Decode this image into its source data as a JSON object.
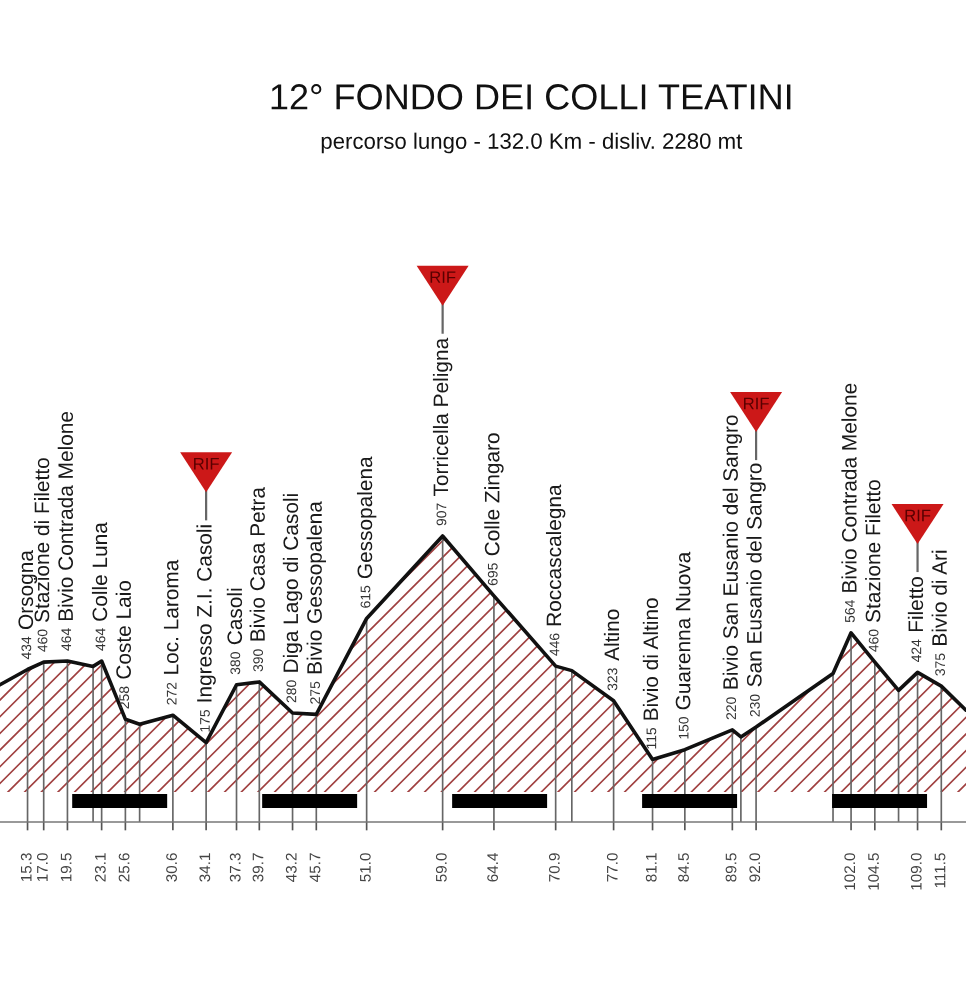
{
  "chart_data": {
    "type": "area",
    "title": "12° FONDO DEI COLLI TEATINI",
    "subtitle": "percorso lungo - 132.0 Km - disliv. 2280 mt",
    "x": [
      12.4,
      15.3,
      17.0,
      19.5,
      22.2,
      23.1,
      25.6,
      27.1,
      30.6,
      34.1,
      37.3,
      39.7,
      43.2,
      45.7,
      51.0,
      59.0,
      64.4,
      70.9,
      72.6,
      77.0,
      81.1,
      84.5,
      89.5,
      90.4,
      92.0,
      100.1,
      102.0,
      104.5,
      107.0,
      109.0,
      111.5,
      114.1
    ],
    "values": [
      380,
      434,
      460,
      464,
      445,
      464,
      258,
      240,
      272,
      175,
      380,
      390,
      280,
      275,
      615,
      907,
      695,
      446,
      430,
      323,
      115,
      150,
      220,
      195,
      230,
      420,
      564,
      460,
      360,
      424,
      375,
      290
    ],
    "value_labels": [
      null,
      "434",
      "460",
      "464",
      null,
      "464",
      "258",
      null,
      "272",
      "175",
      "380",
      "390",
      "280",
      "275",
      "615",
      "907",
      "695",
      "446",
      null,
      "323",
      "115",
      "150",
      "220",
      null,
      "230",
      null,
      "564",
      "460",
      null,
      "424",
      "375",
      null
    ],
    "color": "#a04040",
    "xlim": [
      12.4,
      114.1
    ],
    "xticks": [
      15.3,
      {
        "value": 17.0,
        "label": "17.0"
      },
      19.5,
      23.1,
      25.6,
      30.6,
      34.1,
      37.3,
      39.7,
      43.2,
      45.7,
      {
        "value": 51.0,
        "label": "51.0"
      },
      {
        "value": 59.0,
        "label": "59.0"
      },
      64.4,
      70.9,
      {
        "value": 77.0,
        "label": "77.0"
      },
      81.1,
      84.5,
      89.5,
      {
        "value": 92.0,
        "label": "92.0"
      },
      {
        "value": 102.0,
        "label": "102.0"
      },
      104.5,
      {
        "value": 109.0,
        "label": "109.0"
      },
      111.5
    ],
    "tick_labels": "x",
    "ref_lines": [
      {
        "axis": "x",
        "value": 15.3,
        "label": "Orsogna"
      },
      {
        "axis": "x",
        "value": 17.0,
        "label": "Stazione di Filetto"
      },
      {
        "axis": "x",
        "value": 19.5,
        "label": "Bivio Contrada Melone"
      },
      {
        "axis": "x",
        "value": 22.2
      },
      {
        "axis": "x",
        "value": 23.1,
        "label": "Colle Luna"
      },
      {
        "axis": "x",
        "value": 25.6,
        "label": "Coste Laio"
      },
      {
        "axis": "x",
        "value": 27.1
      },
      {
        "axis": "x",
        "value": 30.6,
        "label": "Loc. Laroma"
      },
      {
        "axis": "x",
        "value": 34.1,
        "label": "Ingresso Z.I. Casoli"
      },
      {
        "axis": "x",
        "value": 34.1,
        "label": "RIF"
      },
      {
        "axis": "x",
        "value": 37.3,
        "label": "Casoli"
      },
      {
        "axis": "x",
        "value": 39.7,
        "label": "Bivio Casa Petra"
      },
      {
        "axis": "x",
        "value": 43.2,
        "label": "Diga Lago di Casoli"
      },
      {
        "axis": "x",
        "value": 45.7,
        "label": "Bivio Gessopalena"
      },
      {
        "axis": "x",
        "value": 51.0,
        "label": "Gessopalena"
      },
      {
        "axis": "x",
        "value": 59.0,
        "label": "Torricella Peligna"
      },
      {
        "axis": "x",
        "value": 59.0,
        "label": "RIF"
      },
      {
        "axis": "x",
        "value": 64.4,
        "label": "Colle Zingaro"
      },
      {
        "axis": "x",
        "value": 70.9,
        "label": "Roccascalegna"
      },
      {
        "axis": "x",
        "value": 72.6
      },
      {
        "axis": "x",
        "value": 77.0,
        "label": "Altino"
      },
      {
        "axis": "x",
        "value": 81.1,
        "label": "Bivio di Altino"
      },
      {
        "axis": "x",
        "value": 84.5,
        "label": "Guarenna Nuova"
      },
      {
        "axis": "x",
        "value": 89.5,
        "label": "Bivio San Eusanio del Sangro"
      },
      {
        "axis": "x",
        "value": 90.4
      },
      {
        "axis": "x",
        "value": 92.0,
        "label": "San Eusanio del Sangro"
      },
      {
        "axis": "x",
        "value": 92.0,
        "label": "RIF"
      },
      {
        "axis": "x",
        "value": 100.1
      },
      {
        "axis": "x",
        "value": 102.0,
        "label": "Bivio Contrada Melone"
      },
      {
        "axis": "x",
        "value": 104.5,
        "label": "Stazione Filetto"
      },
      {
        "axis": "x",
        "value": 107.0
      },
      {
        "axis": "x",
        "value": 109.0,
        "label": "Filetto"
      },
      {
        "axis": "x",
        "value": 109.0,
        "label": "RIF"
      },
      {
        "axis": "x",
        "value": 111.5,
        "label": "Bivio di Ari"
      }
    ]
  }
}
